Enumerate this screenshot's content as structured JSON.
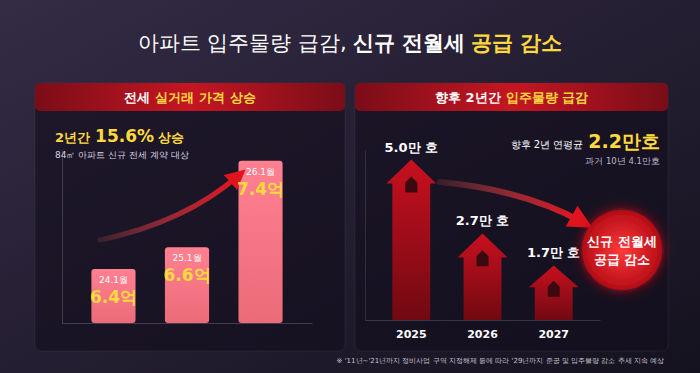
{
  "title": [
    "아파트 입주물량 급감,",
    "신규 전월세",
    "공급 감소"
  ],
  "chart_data": [
    {
      "type": "bar",
      "title": [
        "전세",
        "실거래 가격 상승"
      ],
      "subtitle": [
        "2년간",
        "15.6%",
        "상승"
      ],
      "note": "84㎡ 아파트 신규 전세 계약 대상",
      "categories": [
        "24.1월",
        "25.1월",
        "26.1월"
      ],
      "values": [
        6.4,
        6.6,
        7.4
      ],
      "value_labels": [
        "6.4억",
        "6.6억",
        "7.4억"
      ],
      "data_labels": true,
      "ylim": [
        5.9,
        7.5
      ],
      "tick_labels": false,
      "color": "#ec6b79"
    },
    {
      "type": "bar",
      "title": [
        "향후 2년간",
        "입주물량 급감"
      ],
      "categories": [
        "2025",
        "2026",
        "2027"
      ],
      "values": [
        5.0,
        2.7,
        1.7
      ],
      "value_labels": [
        "5.0만 호",
        "2.7만 호",
        "1.7만 호"
      ],
      "data_labels": true,
      "ylim": [
        0,
        5.3
      ],
      "tick_labels": "x",
      "color": "#c8101f",
      "annotations": {
        "average": [
          "향후 2년 연평균",
          "2.2만호"
        ],
        "past": "과거 10년 4.1만호",
        "callout": [
          "신규 전월세",
          "공급 감소"
        ]
      }
    }
  ],
  "footnote": "※ '11년~'21년까지 정비사업 구역 지정해제 등에 따라 '29년까지 준공 및 입주물량 감소 추세 지속 예상"
}
